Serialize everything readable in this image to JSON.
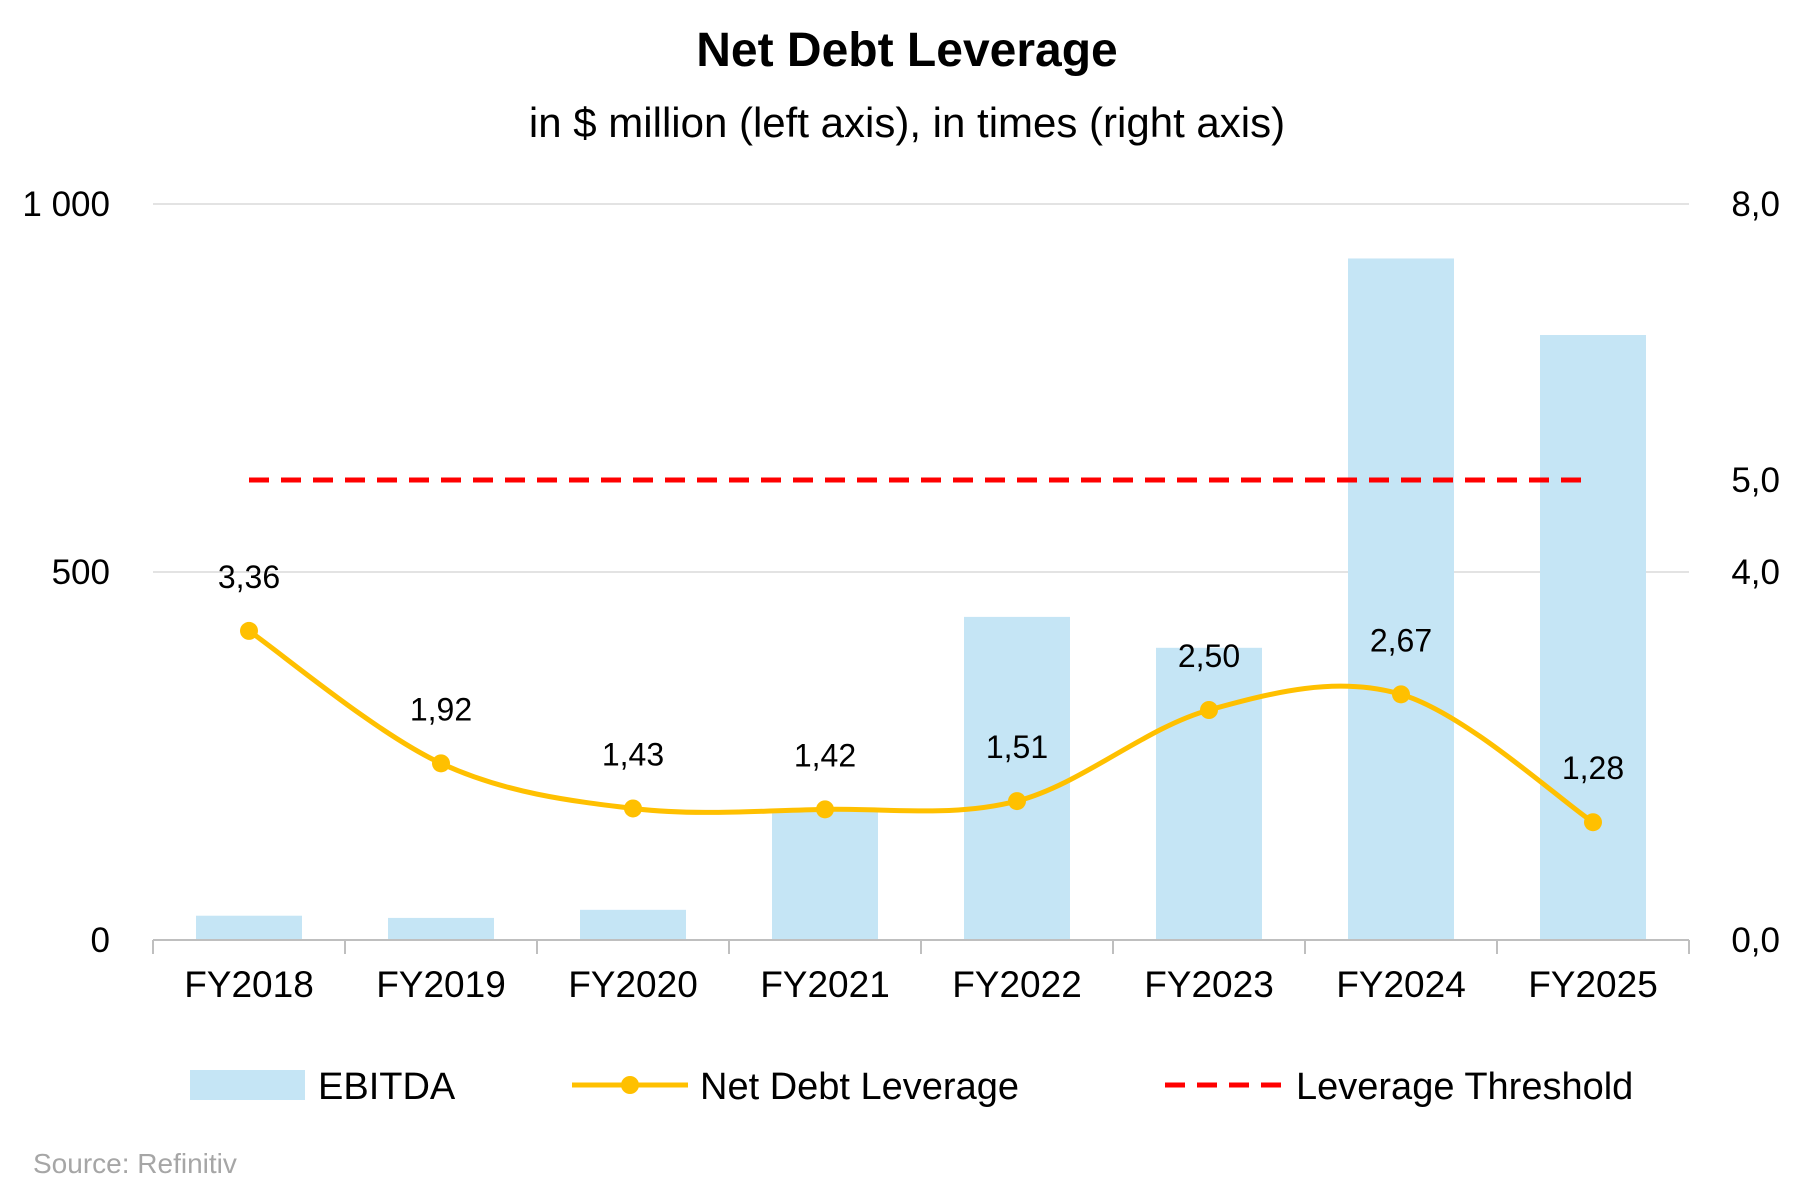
{
  "chart_data": {
    "type": "bar",
    "title": "Net Debt Leverage",
    "subtitle": "in $ million (left axis), in times (right axis)",
    "categories": [
      "FY2018",
      "FY2019",
      "FY2020",
      "FY2021",
      "FY2022",
      "FY2023",
      "FY2024",
      "FY2025"
    ],
    "series": [
      {
        "name": "EBITDA",
        "type": "bar",
        "axis": "left",
        "color": "#c5e5f5",
        "values": [
          33,
          30,
          41,
          178,
          439,
          397,
          926,
          822
        ]
      },
      {
        "name": "Net Debt Leverage",
        "type": "line",
        "axis": "right",
        "color": "#ffc000",
        "values": [
          3.36,
          1.92,
          1.43,
          1.42,
          1.51,
          2.5,
          2.67,
          1.28
        ],
        "labels": [
          "3,36",
          "1,92",
          "1,43",
          "1,42",
          "1,51",
          "2,50",
          "2,67",
          "1,28"
        ]
      },
      {
        "name": "Leverage Threshold",
        "type": "line",
        "style": "dashed",
        "axis": "right",
        "color": "#ff0000",
        "values": [
          5,
          5,
          5,
          5,
          5,
          5,
          5,
          5
        ]
      }
    ],
    "left_axis": {
      "ylim": [
        0,
        1000
      ],
      "ticks": [
        0,
        500,
        1000
      ],
      "tick_labels": [
        "0",
        "500",
        "1 000"
      ]
    },
    "right_axis": {
      "ylim": [
        0,
        8
      ],
      "ticks": [
        0,
        4,
        5,
        8
      ],
      "tick_labels": [
        "0,0",
        "4,0",
        "5,0",
        "8,0"
      ]
    },
    "gridlines": true,
    "legend_position": "bottom",
    "source": "Source: Refinitiv"
  }
}
